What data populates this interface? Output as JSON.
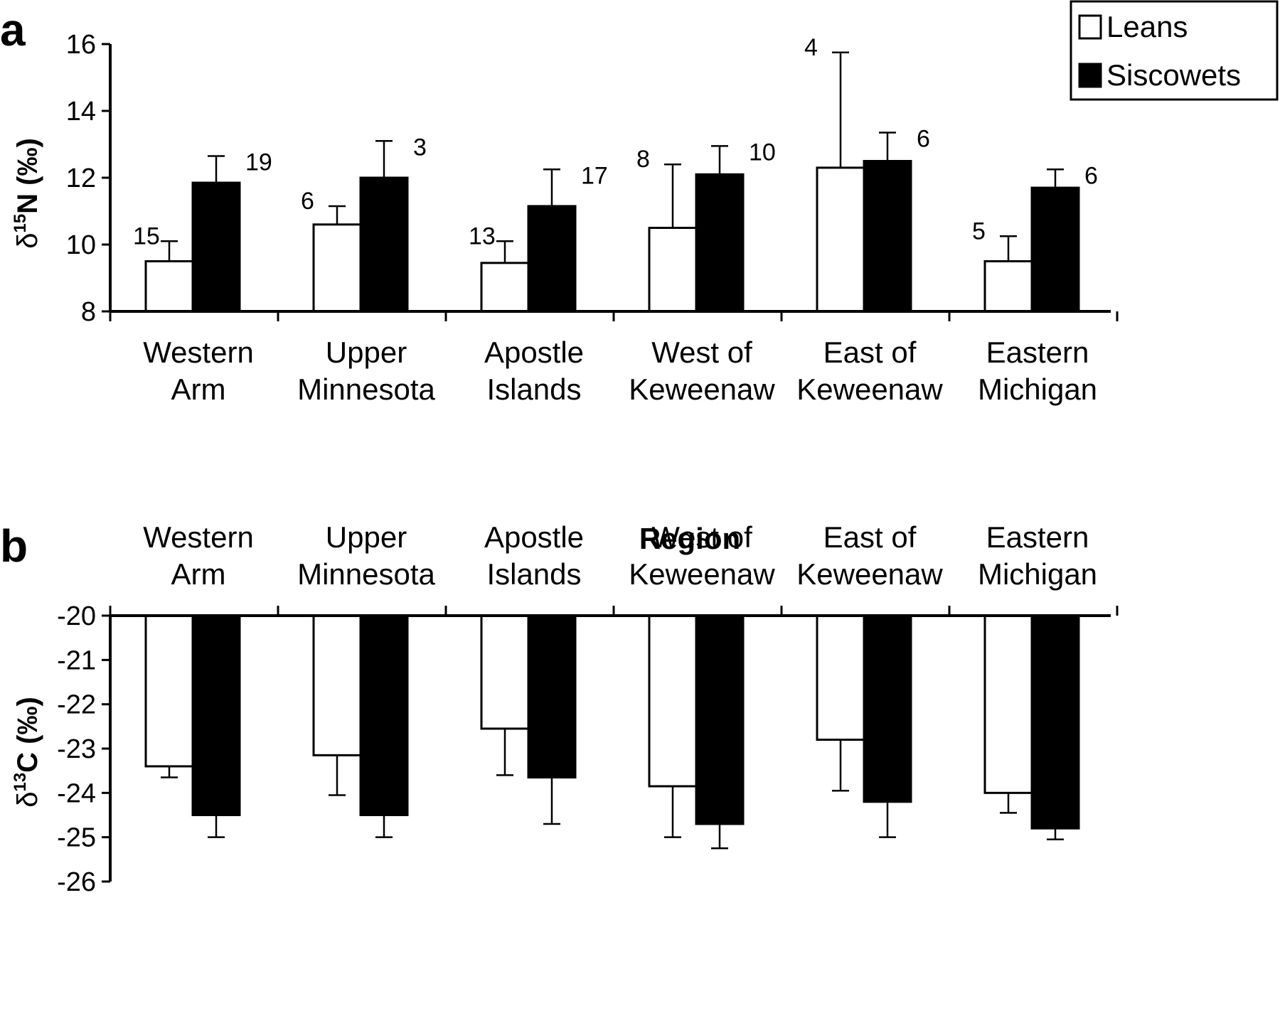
{
  "chart_data": [
    {
      "panel": "a",
      "type": "bar",
      "categories": [
        [
          "Western",
          "Arm"
        ],
        [
          "Upper",
          "Minnesota"
        ],
        [
          "Apostle",
          "Islands"
        ],
        [
          "West of",
          "Keweenaw"
        ],
        [
          "East of",
          "Keweenaw"
        ],
        [
          "Eastern",
          "Michigan"
        ]
      ],
      "ylabel": {
        "symbol": "δ",
        "superscript": "15",
        "text": "N (‰)"
      },
      "xlabel": "Region",
      "ylim": [
        8,
        16
      ],
      "yticks": [
        "8",
        "10",
        "12",
        "14",
        "16"
      ],
      "series": [
        {
          "name": "Leans",
          "fill": "#ffffff",
          "values": [
            9.5,
            10.6,
            9.45,
            10.5,
            12.3,
            9.5
          ],
          "err": [
            0.6,
            0.55,
            0.65,
            1.9,
            3.45,
            0.75
          ],
          "n": [
            "15",
            "6",
            "13",
            "8",
            "4",
            "5"
          ]
        },
        {
          "name": "Siscowets",
          "fill": "#000000",
          "values": [
            11.85,
            12.0,
            11.15,
            12.1,
            12.5,
            11.7
          ],
          "err": [
            0.8,
            1.1,
            1.1,
            0.85,
            0.85,
            0.55
          ],
          "n": [
            "19",
            "3",
            "17",
            "10",
            "6",
            "6"
          ]
        }
      ],
      "legend": {
        "position": "top-right",
        "entries": [
          "Leans",
          "Siscowets"
        ]
      }
    },
    {
      "panel": "b",
      "type": "bar",
      "categories": [
        [
          "Western",
          "Arm"
        ],
        [
          "Upper",
          "Minnesota"
        ],
        [
          "Apostle",
          "Islands"
        ],
        [
          "West of",
          "Keweenaw"
        ],
        [
          "East of",
          "Keweenaw"
        ],
        [
          "Eastern",
          "Michigan"
        ]
      ],
      "ylabel": {
        "symbol": "δ",
        "superscript": "13",
        "text": "C (‰)"
      },
      "ylim": [
        -26,
        -20
      ],
      "yticks": [
        "-20",
        "-21",
        "-22",
        "-23",
        "-24",
        "-25",
        "-26"
      ],
      "series": [
        {
          "name": "Leans",
          "fill": "#ffffff",
          "values": [
            -23.4,
            -23.15,
            -22.55,
            -23.85,
            -22.8,
            -24.0
          ],
          "err": [
            0.25,
            0.9,
            1.05,
            1.15,
            1.15,
            0.45
          ]
        },
        {
          "name": "Siscowets",
          "fill": "#000000",
          "values": [
            -24.5,
            -24.5,
            -23.65,
            -24.7,
            -24.2,
            -24.8
          ],
          "err": [
            0.5,
            0.5,
            1.05,
            0.55,
            0.8,
            0.25
          ]
        }
      ]
    }
  ]
}
